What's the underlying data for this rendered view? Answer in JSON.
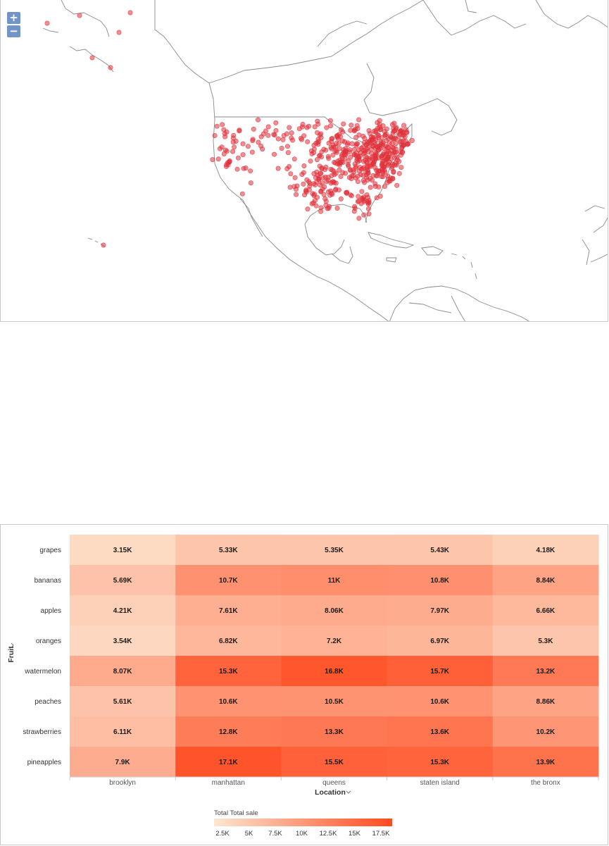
{
  "map": {
    "zoom_in_label": "+",
    "zoom_out_label": "−",
    "marker_color": "#e0313b"
  },
  "chart_data": {
    "type": "heatmap",
    "x_axis_title": "Location",
    "y_axis_title": "Fruit",
    "categories_x": [
      "brooklyn",
      "manhattan",
      "queens",
      "staten island",
      "the bronx"
    ],
    "categories_y": [
      "grapes",
      "bananas",
      "apples",
      "oranges",
      "watermelon",
      "peaches",
      "strawberries",
      "pineapples"
    ],
    "values": [
      [
        3150,
        5330,
        5350,
        5430,
        4180
      ],
      [
        5690,
        10700,
        11000,
        10800,
        8840
      ],
      [
        4210,
        7610,
        8060,
        7970,
        6660
      ],
      [
        3540,
        6820,
        7200,
        6970,
        5300
      ],
      [
        8070,
        15300,
        16800,
        15700,
        13200
      ],
      [
        5610,
        10600,
        10500,
        10600,
        8860
      ],
      [
        6110,
        12800,
        13300,
        13600,
        10200
      ],
      [
        7900,
        17100,
        15500,
        15300,
        13900
      ]
    ],
    "labels": [
      [
        "3.15K",
        "5.33K",
        "5.35K",
        "5.43K",
        "4.18K"
      ],
      [
        "5.69K",
        "10.7K",
        "11K",
        "10.8K",
        "8.84K"
      ],
      [
        "4.21K",
        "7.61K",
        "8.06K",
        "7.97K",
        "6.66K"
      ],
      [
        "3.54K",
        "6.82K",
        "7.2K",
        "6.97K",
        "5.3K"
      ],
      [
        "8.07K",
        "15.3K",
        "16.8K",
        "15.7K",
        "13.2K"
      ],
      [
        "5.61K",
        "10.6K",
        "10.5K",
        "10.6K",
        "8.86K"
      ],
      [
        "6.11K",
        "12.8K",
        "13.3K",
        "13.6K",
        "10.2K"
      ],
      [
        "7.9K",
        "17.1K",
        "15.5K",
        "15.3K",
        "13.9K"
      ]
    ],
    "color_range": [
      2000,
      18000
    ],
    "color_low": "#fde6d0",
    "color_high": "#ff4a1f",
    "legend": {
      "title": "Total Total sale",
      "ticks": [
        "2.5K",
        "5K",
        "7.5K",
        "10K",
        "12.5K",
        "15K",
        "17.5K"
      ],
      "tick_values": [
        2500,
        5000,
        7500,
        10000,
        12500,
        15000,
        17500
      ]
    }
  }
}
